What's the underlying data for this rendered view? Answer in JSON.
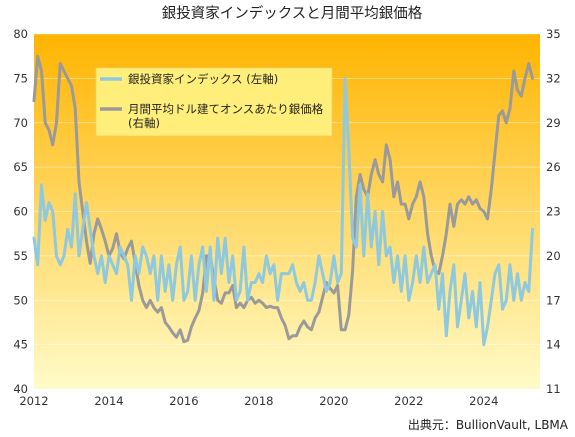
{
  "chart_data": {
    "type": "line",
    "title": "銀投資家インデックスと月間平均銀価格",
    "source": "出典元：BullionVault, LBMA",
    "x_range": [
      2012,
      2025.5
    ],
    "x_ticks": [
      "2012",
      "2014",
      "2016",
      "2018",
      "2020",
      "2022",
      "2024"
    ],
    "left_axis": {
      "range": [
        40,
        80
      ],
      "ticks": [
        "40",
        "45",
        "50",
        "55",
        "60",
        "65",
        "70",
        "75",
        "80"
      ]
    },
    "right_axis": {
      "range": [
        11,
        35
      ],
      "ticks": [
        "11",
        "14",
        "17",
        "20",
        "23",
        "26",
        "29",
        "32",
        "35"
      ]
    },
    "legend": {
      "position": "top-left"
    },
    "colors": {
      "index": "#8ec9df",
      "price": "#9a9a9a",
      "bg_top": "#ffb400",
      "bg_bottom": "#fffbc8"
    },
    "series": [
      {
        "name": "銀投資家インデックス (左軸)",
        "axis": "left",
        "points": [
          [
            2012.0,
            57
          ],
          [
            2012.1,
            54
          ],
          [
            2012.2,
            63
          ],
          [
            2012.3,
            59
          ],
          [
            2012.4,
            61
          ],
          [
            2012.5,
            60
          ],
          [
            2012.6,
            55
          ],
          [
            2012.7,
            54
          ],
          [
            2012.8,
            55
          ],
          [
            2012.9,
            58
          ],
          [
            2013.0,
            56
          ],
          [
            2013.1,
            62
          ],
          [
            2013.2,
            55
          ],
          [
            2013.3,
            58
          ],
          [
            2013.4,
            61
          ],
          [
            2013.5,
            58
          ],
          [
            2013.6,
            55
          ],
          [
            2013.7,
            53
          ],
          [
            2013.8,
            55
          ],
          [
            2013.9,
            52
          ],
          [
            2014.0,
            55
          ],
          [
            2014.1,
            54
          ],
          [
            2014.2,
            53
          ],
          [
            2014.3,
            56
          ],
          [
            2014.4,
            55
          ],
          [
            2014.5,
            54
          ],
          [
            2014.6,
            50
          ],
          [
            2014.7,
            55
          ],
          [
            2014.8,
            53
          ],
          [
            2014.9,
            56
          ],
          [
            2015.0,
            55
          ],
          [
            2015.1,
            53
          ],
          [
            2015.2,
            55
          ],
          [
            2015.3,
            50
          ],
          [
            2015.4,
            55
          ],
          [
            2015.5,
            51
          ],
          [
            2015.6,
            54
          ],
          [
            2015.7,
            50
          ],
          [
            2015.8,
            54
          ],
          [
            2015.9,
            56
          ],
          [
            2016.0,
            50
          ],
          [
            2016.1,
            51
          ],
          [
            2016.2,
            55
          ],
          [
            2016.3,
            50
          ],
          [
            2016.4,
            54
          ],
          [
            2016.5,
            56
          ],
          [
            2016.6,
            51
          ],
          [
            2016.7,
            56
          ],
          [
            2016.8,
            50
          ],
          [
            2016.9,
            57
          ],
          [
            2017.0,
            53
          ],
          [
            2017.1,
            57
          ],
          [
            2017.2,
            52
          ],
          [
            2017.3,
            55
          ],
          [
            2017.4,
            50
          ],
          [
            2017.5,
            51
          ],
          [
            2017.6,
            56
          ],
          [
            2017.7,
            50
          ],
          [
            2017.8,
            52
          ],
          [
            2017.9,
            52
          ],
          [
            2018.0,
            53
          ],
          [
            2018.1,
            52
          ],
          [
            2018.2,
            55
          ],
          [
            2018.3,
            53
          ],
          [
            2018.4,
            54
          ],
          [
            2018.5,
            50
          ],
          [
            2018.6,
            53
          ],
          [
            2018.7,
            53
          ],
          [
            2018.8,
            53
          ],
          [
            2018.9,
            54
          ],
          [
            2019.0,
            52
          ],
          [
            2019.1,
            51
          ],
          [
            2019.2,
            52
          ],
          [
            2019.3,
            50
          ],
          [
            2019.4,
            50
          ],
          [
            2019.5,
            52
          ],
          [
            2019.6,
            55
          ],
          [
            2019.7,
            53
          ],
          [
            2019.8,
            51
          ],
          [
            2019.9,
            52
          ],
          [
            2020.0,
            55
          ],
          [
            2020.1,
            52
          ],
          [
            2020.2,
            53
          ],
          [
            2020.3,
            75
          ],
          [
            2020.4,
            67
          ],
          [
            2020.5,
            57
          ],
          [
            2020.6,
            56
          ],
          [
            2020.7,
            63
          ],
          [
            2020.8,
            55
          ],
          [
            2020.9,
            62
          ],
          [
            2021.0,
            56
          ],
          [
            2021.1,
            60
          ],
          [
            2021.2,
            54
          ],
          [
            2021.3,
            60
          ],
          [
            2021.4,
            55
          ],
          [
            2021.5,
            56
          ],
          [
            2021.6,
            52
          ],
          [
            2021.7,
            55
          ],
          [
            2021.8,
            51
          ],
          [
            2021.9,
            55
          ],
          [
            2022.0,
            50
          ],
          [
            2022.1,
            52
          ],
          [
            2022.2,
            55
          ],
          [
            2022.3,
            52
          ],
          [
            2022.4,
            56
          ],
          [
            2022.5,
            52
          ],
          [
            2022.6,
            53
          ],
          [
            2022.7,
            54
          ],
          [
            2022.8,
            49
          ],
          [
            2022.9,
            53
          ],
          [
            2023.0,
            46
          ],
          [
            2023.1,
            51
          ],
          [
            2023.2,
            54
          ],
          [
            2023.3,
            47
          ],
          [
            2023.4,
            50
          ],
          [
            2023.5,
            53
          ],
          [
            2023.6,
            48
          ],
          [
            2023.7,
            51
          ],
          [
            2023.8,
            47
          ],
          [
            2023.9,
            52
          ],
          [
            2024.0,
            45
          ],
          [
            2024.1,
            47
          ],
          [
            2024.2,
            50
          ],
          [
            2024.3,
            53
          ],
          [
            2024.4,
            54
          ],
          [
            2024.5,
            49
          ],
          [
            2024.6,
            50
          ],
          [
            2024.7,
            54
          ],
          [
            2024.8,
            50
          ],
          [
            2024.9,
            53
          ],
          [
            2025.0,
            50
          ],
          [
            2025.1,
            52
          ],
          [
            2025.2,
            51
          ],
          [
            2025.3,
            58
          ]
        ]
      },
      {
        "name": "月間平均ドル建てオンスあたり銀価格\n(右軸)",
        "axis": "right",
        "points": [
          [
            2012.0,
            30.5
          ],
          [
            2012.1,
            33.5
          ],
          [
            2012.2,
            32.5
          ],
          [
            2012.3,
            29
          ],
          [
            2012.4,
            28.5
          ],
          [
            2012.5,
            27.5
          ],
          [
            2012.6,
            29
          ],
          [
            2012.7,
            33
          ],
          [
            2012.8,
            32.5
          ],
          [
            2012.9,
            32
          ],
          [
            2013.0,
            31.5
          ],
          [
            2013.1,
            30
          ],
          [
            2013.2,
            25
          ],
          [
            2013.3,
            23
          ],
          [
            2013.4,
            21
          ],
          [
            2013.5,
            19.5
          ],
          [
            2013.6,
            21.5
          ],
          [
            2013.7,
            22.5
          ],
          [
            2013.8,
            21.8
          ],
          [
            2013.9,
            21
          ],
          [
            2014.0,
            20
          ],
          [
            2014.1,
            20.5
          ],
          [
            2014.2,
            21.5
          ],
          [
            2014.3,
            20.2
          ],
          [
            2014.4,
            19.8
          ],
          [
            2014.5,
            20.5
          ],
          [
            2014.6,
            21
          ],
          [
            2014.7,
            19.5
          ],
          [
            2014.8,
            18
          ],
          [
            2014.9,
            17
          ],
          [
            2015.0,
            16.5
          ],
          [
            2015.1,
            17
          ],
          [
            2015.2,
            16.5
          ],
          [
            2015.3,
            16.2
          ],
          [
            2015.4,
            16.5
          ],
          [
            2015.5,
            15.5
          ],
          [
            2015.6,
            15.2
          ],
          [
            2015.7,
            14.8
          ],
          [
            2015.8,
            14.5
          ],
          [
            2015.9,
            15
          ],
          [
            2016.0,
            14.2
          ],
          [
            2016.1,
            14.3
          ],
          [
            2016.2,
            15.2
          ],
          [
            2016.3,
            15.8
          ],
          [
            2016.4,
            16.3
          ],
          [
            2016.5,
            17.5
          ],
          [
            2016.6,
            20
          ],
          [
            2016.7,
            20
          ],
          [
            2016.8,
            18.5
          ],
          [
            2016.9,
            17
          ],
          [
            2017.0,
            16.8
          ],
          [
            2017.1,
            17.5
          ],
          [
            2017.2,
            17.5
          ],
          [
            2017.3,
            18
          ],
          [
            2017.4,
            16.5
          ],
          [
            2017.5,
            16.8
          ],
          [
            2017.6,
            16.5
          ],
          [
            2017.7,
            17
          ],
          [
            2017.8,
            17.2
          ],
          [
            2017.9,
            16.8
          ],
          [
            2018.0,
            17
          ],
          [
            2018.1,
            16.8
          ],
          [
            2018.2,
            16.5
          ],
          [
            2018.3,
            16.6
          ],
          [
            2018.4,
            16.5
          ],
          [
            2018.5,
            16.5
          ],
          [
            2018.6,
            15.8
          ],
          [
            2018.7,
            15.3
          ],
          [
            2018.8,
            14.4
          ],
          [
            2018.9,
            14.6
          ],
          [
            2019.0,
            14.6
          ],
          [
            2019.1,
            15.2
          ],
          [
            2019.2,
            15.6
          ],
          [
            2019.3,
            15.2
          ],
          [
            2019.4,
            15
          ],
          [
            2019.5,
            15.8
          ],
          [
            2019.6,
            16.2
          ],
          [
            2019.7,
            17.2
          ],
          [
            2019.8,
            18.2
          ],
          [
            2019.9,
            17.8
          ],
          [
            2020.0,
            17.5
          ],
          [
            2020.1,
            18
          ],
          [
            2020.2,
            15
          ],
          [
            2020.3,
            15
          ],
          [
            2020.4,
            16
          ],
          [
            2020.5,
            19
          ],
          [
            2020.6,
            24
          ],
          [
            2020.7,
            25.5
          ],
          [
            2020.8,
            24.5
          ],
          [
            2020.9,
            24
          ],
          [
            2021.0,
            25.5
          ],
          [
            2021.1,
            26.5
          ],
          [
            2021.2,
            25.5
          ],
          [
            2021.3,
            25
          ],
          [
            2021.4,
            27.5
          ],
          [
            2021.5,
            26.5
          ],
          [
            2021.6,
            24
          ],
          [
            2021.7,
            25
          ],
          [
            2021.8,
            23.5
          ],
          [
            2021.9,
            23.5
          ],
          [
            2022.0,
            22.5
          ],
          [
            2022.1,
            23.5
          ],
          [
            2022.2,
            24
          ],
          [
            2022.3,
            25
          ],
          [
            2022.4,
            24
          ],
          [
            2022.5,
            21.5
          ],
          [
            2022.6,
            20
          ],
          [
            2022.7,
            19
          ],
          [
            2022.8,
            18.8
          ],
          [
            2022.9,
            20
          ],
          [
            2023.0,
            21.5
          ],
          [
            2023.1,
            23.5
          ],
          [
            2023.2,
            22
          ],
          [
            2023.3,
            23.5
          ],
          [
            2023.4,
            23.8
          ],
          [
            2023.5,
            23.5
          ],
          [
            2023.6,
            24
          ],
          [
            2023.7,
            23.5
          ],
          [
            2023.8,
            23.8
          ],
          [
            2023.9,
            23.2
          ],
          [
            2024.0,
            23
          ],
          [
            2024.1,
            22.5
          ],
          [
            2024.2,
            24.5
          ],
          [
            2024.3,
            27
          ],
          [
            2024.4,
            29.5
          ],
          [
            2024.5,
            29.8
          ],
          [
            2024.6,
            29
          ],
          [
            2024.7,
            30
          ],
          [
            2024.8,
            32.5
          ],
          [
            2024.9,
            31.2
          ],
          [
            2025.0,
            30.8
          ],
          [
            2025.1,
            32
          ],
          [
            2025.2,
            33
          ],
          [
            2025.3,
            32
          ]
        ]
      }
    ]
  }
}
